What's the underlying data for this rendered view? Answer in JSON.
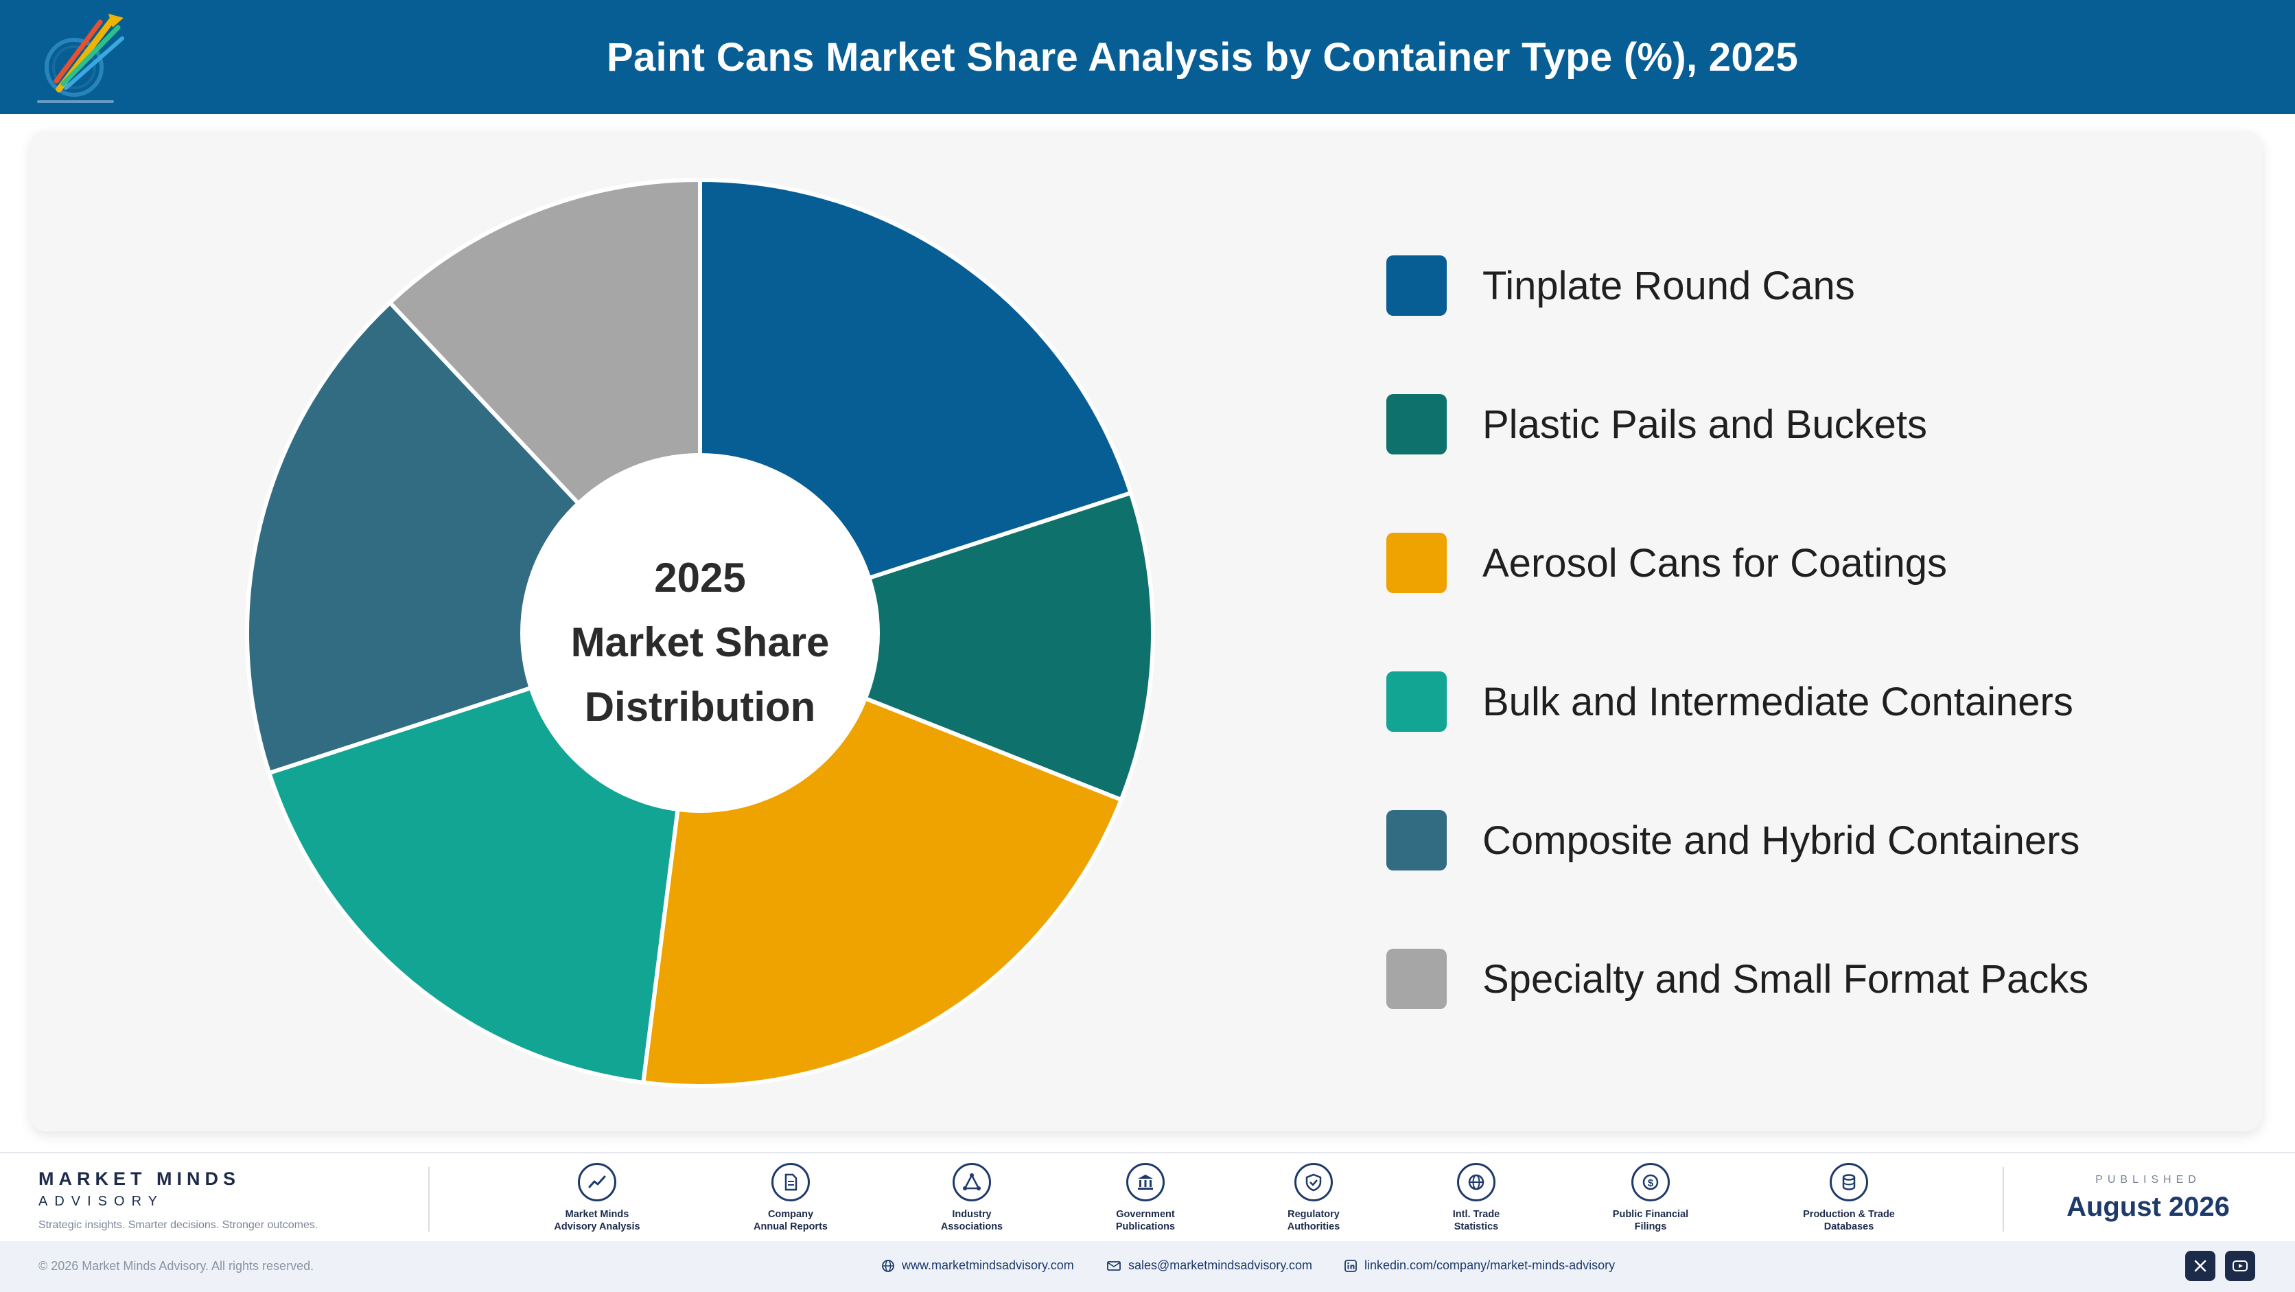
{
  "header": {
    "title": "Paint Cans Market Share Analysis by Container Type (%), 2025"
  },
  "chart_data": {
    "type": "pie",
    "title": "Paint Cans Market Share Analysis by Container Type (%), 2025",
    "center_label": [
      "2025",
      "Market Share",
      "Distribution"
    ],
    "legend_position": "right",
    "categories": [
      "Tinplate Round Cans",
      "Plastic Pails and Buckets",
      "Aerosol Cans for Coatings",
      "Bulk and Intermediate Containers",
      "Composite and Hybrid Containers",
      "Specialty and Small Format Packs"
    ],
    "values": [
      20,
      11,
      21,
      18,
      18,
      12
    ],
    "colors": [
      "#075e94",
      "#0e716b",
      "#efa300",
      "#12a594",
      "#316c82",
      "#a6a6a6"
    ]
  },
  "footer": {
    "brand_name": "MARKET MINDS",
    "brand_sub": "ADVISORY",
    "brand_tagline": "Strategic insights. Smarter decisions. Stronger outcomes.",
    "sources": [
      {
        "icon": "chart-icon",
        "label_1": "Market Minds",
        "label_2": "Advisory Analysis"
      },
      {
        "icon": "document-icon",
        "label_1": "Company",
        "label_2": "Annual Reports"
      },
      {
        "icon": "network-icon",
        "label_1": "Industry",
        "label_2": "Associations"
      },
      {
        "icon": "government-building-icon",
        "label_1": "Government",
        "label_2": "Publications"
      },
      {
        "icon": "shield-check-icon",
        "label_1": "Regulatory",
        "label_2": "Authorities"
      },
      {
        "icon": "globe-icon",
        "label_1": "Intl. Trade",
        "label_2": "Statistics"
      },
      {
        "icon": "dollar-coin-icon",
        "label_1": "Public Financial",
        "label_2": "Filings"
      },
      {
        "icon": "database-icon",
        "label_1": "Production & Trade",
        "label_2": "Databases"
      }
    ],
    "published_label": "PUBLISHED",
    "published_date": "August 2026"
  },
  "bottom_bar": {
    "copyright": "© 2026 Market Minds Advisory. All rights reserved.",
    "website": "www.marketmindsadvisory.com",
    "email": "sales@marketmindsadvisory.com",
    "linkedin": "linkedin.com/company/market-minds-advisory"
  }
}
